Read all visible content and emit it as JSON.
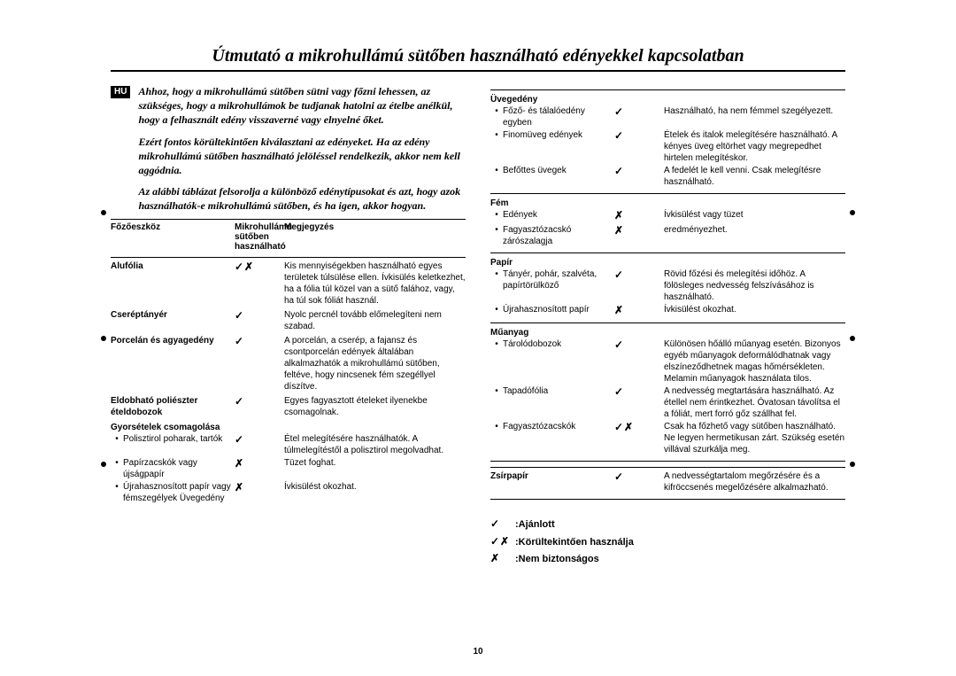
{
  "title": "Útmutató a mikrohullámú sütőben használható edényekkel kapcsolatban",
  "hu_badge": "HU",
  "intro": [
    "Ahhoz, hogy a mikrohullámú sütőben sütni vagy főzni lehessen, az szükséges, hogy a mikrohullámok be tudjanak hatolni az ételbe anélkül, hogy a felhasznált edény visszaverné vagy elnyelné őket.",
    "Ezért fontos körültekintően kiválasztani az edényeket. Ha az edény mikrohullámú sütőben használható jelöléssel rendelkezik, akkor nem kell aggódnia.",
    "Az alábbi táblázat felsorolja a különböző edénytípusokat és azt, hogy azok használhatók-e mikrohullámú sütőben, és ha igen, akkor hogyan."
  ],
  "headers": {
    "c1": "Főzőeszköz",
    "c2a": "Mikrohullámú",
    "c2b": "sütőben",
    "c2c": "használható",
    "c3": "Megjegyzés"
  },
  "left_rows": [
    {
      "name": "Alufólia",
      "sym": "✓✗",
      "note": "Kis mennyiségekben használható egyes területek túlsülése ellen. Ívkisülés keletkezhet, ha a fólia túl közel van a sütő falához, vagy, ha túl sok fóliát használ."
    },
    {
      "name": "Cseréptányér",
      "sym": "✓",
      "note": "Nyolc percnél tovább előmelegíteni nem szabad."
    },
    {
      "name": "Porcelán és agyagedény",
      "sym": "✓",
      "note": "A porcelán, a cserép, a fajansz és csontporcelán edények általában alkalmazhatók a mikrohullámú sütőben, feltéve, hogy nincsenek fém szegéllyel díszítve."
    },
    {
      "name": "Eldobható poliészter ételdobozok",
      "sym": "✓",
      "note": "Egyes fagyasztott ételeket ilyenekbe csomagolnak."
    }
  ],
  "left_cat": "Gyorsételek csomagolása",
  "left_subs": [
    {
      "name": "Polisztirol poharak, tartók",
      "sym": "✓",
      "note": "Étel melegítésére használhatók. A túlmelegítéstől a polisztirol megolvadhat."
    },
    {
      "name": "Papírzacskók vagy újságpapír",
      "sym": "✗",
      "note": "Tüzet foghat."
    },
    {
      "name": "Újrahasznosított papír vagy fémszegélyek Üvegedény",
      "sym": "✗",
      "note": "Ívkisülést okozhat."
    }
  ],
  "right_groups": [
    {
      "cat": "Üvegedény",
      "items": [
        {
          "name": "Főző- és tálalóedény egyben",
          "sym": "✓",
          "note": "Használható, ha nem fémmel szegélyezett."
        },
        {
          "name": "Finomüveg edények",
          "sym": "✓",
          "note": "Ételek és italok melegítésére használható. A kényes üveg eltörhet vagy megrepedhet hirtelen melegítéskor."
        },
        {
          "name": "Befőttes üvegek",
          "sym": "✓",
          "note": "A fedelét le kell venni. Csak melegítésre használható."
        }
      ]
    },
    {
      "cat": "Fém",
      "items": [
        {
          "name": "Edények",
          "sym": "✗",
          "note": "Ívkisülést vagy tüzet"
        },
        {
          "name": "Fagyasztózacskó zárószalagja",
          "sym": "✗",
          "note": "eredményezhet."
        }
      ]
    },
    {
      "cat": "Papír",
      "items": [
        {
          "name": "Tányér, pohár, szalvéta, papírtörülköző",
          "sym": "✓",
          "note": "Rövid főzési és melegítési időhöz. A fölösleges nedvesség felszívásához is használható."
        },
        {
          "name": "Újrahasznosított papír",
          "sym": "✗",
          "note": "Ívkisülést okozhat."
        }
      ]
    },
    {
      "cat": "Műanyag",
      "items": [
        {
          "name": "Tárolódobozok",
          "sym": "✓",
          "note": "Különösen hőálló műanyag esetén. Bizonyos egyéb műanyagok deformálódhatnak vagy elszíneződhetnek magas hőmérsékleten. Melamin műanyagok használata tilos."
        },
        {
          "name": "Tapadófólia",
          "sym": "✓",
          "note": "A nedvesség megtartására használható. Az étellel nem érintkezhet. Óvatosan távolítsa el a fóliát, mert forró gőz szállhat fel."
        },
        {
          "name": "Fagyasztózacskók",
          "sym": "✓✗",
          "note": "Csak ha főzhető vagy sütőben használható. Ne legyen hermetikusan zárt. Szükség esetén villával szurkálja meg."
        }
      ]
    }
  ],
  "right_last": {
    "name": "Zsírpapír",
    "sym": "✓",
    "note": "A nedvességtartalom megőrzésére és a kifröccsenés megelőzésére alkalmazható."
  },
  "legend": [
    {
      "sym": "✓",
      "text": ":Ajánlott"
    },
    {
      "sym": "✓✗",
      "text": ":Körültekintően használja"
    },
    {
      "sym": "✗",
      "text": ":Nem biztonságos"
    }
  ],
  "page_number": "10"
}
